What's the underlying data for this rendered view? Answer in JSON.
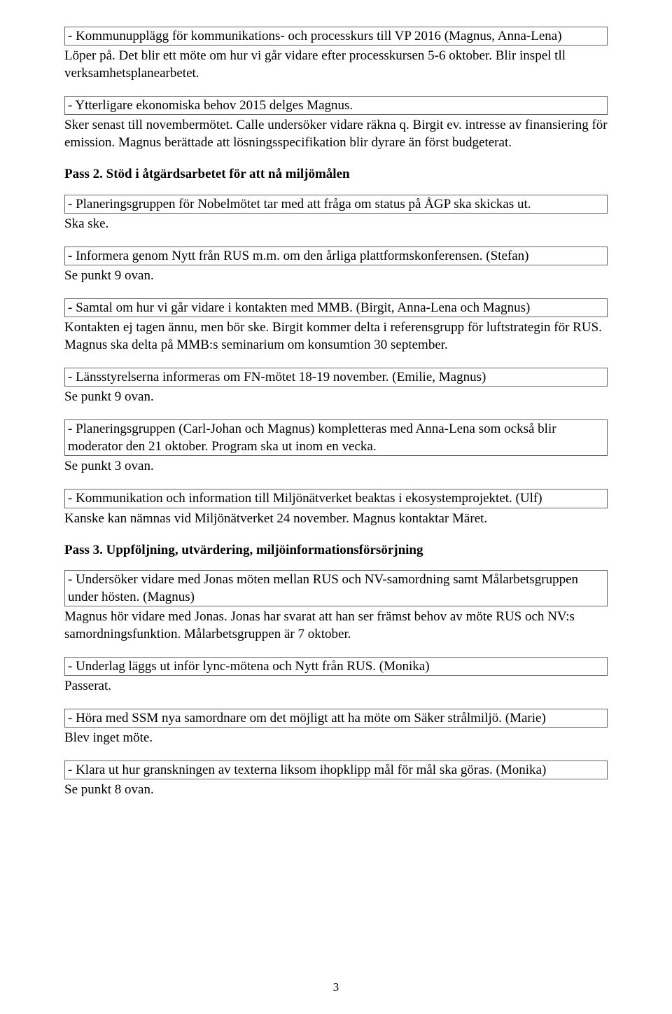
{
  "box1": "- Kommunupplägg för kommunikations- och processkurs till VP 2016 (Magnus, Anna-Lena)",
  "after1": "Löper på. Det blir ett möte om hur vi går vidare efter processkursen 5-6 oktober. Blir inspel tll verksamhetsplanearbetet.",
  "box2": "- Ytterligare ekonomiska behov 2015 delges Magnus.",
  "after2": "Sker senast till novembermötet. Calle undersöker vidare räkna q. Birgit ev. intresse av finansiering för emission. Magnus berättade att lösningsspecifikation blir dyrare än först budgeterat.",
  "pass2_heading": "Pass 2. Stöd i åtgärdsarbetet för att nå miljömålen",
  "box3": "- Planeringsgruppen för Nobelmötet tar med att fråga om status på ÅGP ska skickas ut.",
  "after3": "Ska ske.",
  "box4": "- Informera genom Nytt från RUS m.m. om den årliga plattformskonferensen. (Stefan)",
  "after4": "Se punkt 9 ovan.",
  "box5": "- Samtal om hur vi går vidare i kontakten med MMB. (Birgit, Anna-Lena och Magnus)",
  "after5": "Kontakten ej tagen ännu, men bör ske. Birgit kommer delta i referensgrupp för luftstrategin för RUS. Magnus ska delta på MMB:s seminarium om konsumtion 30 september.",
  "box6": "- Länsstyrelserna informeras om FN-mötet 18-19 november. (Emilie, Magnus)",
  "after6": "Se punkt 9 ovan.",
  "box7": "- Planeringsgruppen (Carl-Johan och Magnus) kompletteras med Anna-Lena som också blir moderator den 21 oktober. Program ska ut inom en vecka.",
  "after7": "Se punkt 3 ovan.",
  "box8": "- Kommunikation och information till Miljönätverket beaktas i ekosystemprojektet. (Ulf)",
  "after8": "Kanske kan nämnas vid Miljönätverket 24 november. Magnus kontaktar Märet.",
  "pass3_heading": "Pass 3. Uppföljning, utvärdering, miljöinformationsförsörjning",
  "box9": "- Undersöker vidare med Jonas möten mellan RUS och NV-samordning samt Målarbetsgruppen under hösten. (Magnus)",
  "after9": "Magnus hör vidare med Jonas. Jonas har svarat att han ser främst behov av möte RUS och NV:s samordningsfunktion. Målarbetsgruppen är 7 oktober.",
  "box10": "- Underlag läggs ut inför lync-mötena och Nytt från RUS. (Monika)",
  "after10": "Passerat.",
  "box11": "- Höra med SSM nya samordnare om det möjligt att ha möte om Säker strålmiljö. (Marie)",
  "after11": "Blev inget möte.",
  "box12": "- Klara ut hur granskningen av texterna liksom ihopklipp mål för mål ska göras. (Monika)",
  "after12": "Se punkt 8 ovan.",
  "page_number": "3"
}
